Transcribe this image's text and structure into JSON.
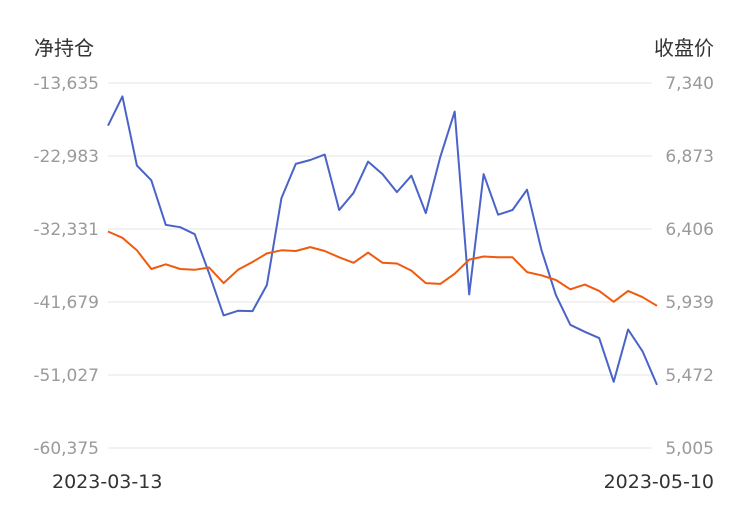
{
  "chart_data": {
    "type": "line",
    "left_axis_title": "净持仓",
    "right_axis_title": "收盘价",
    "left_ticks": [
      "-13,635",
      "-22,983",
      "-32,331",
      "-41,679",
      "-51,027",
      "-60,375"
    ],
    "right_ticks": [
      "7,340",
      "6,873",
      "6,406",
      "5,939",
      "5,472",
      "5,005"
    ],
    "left_range": [
      -60375,
      -13635
    ],
    "right_range": [
      5005,
      7340
    ],
    "x_start_label": "2023-03-13",
    "x_end_label": "2023-05-10",
    "grid": true,
    "series": [
      {
        "axis": "left",
        "color": "#4a63c8",
        "values": [
          -19100,
          -15350,
          -24200,
          -26100,
          -31800,
          -32100,
          -33000,
          -38000,
          -43400,
          -42800,
          -42850,
          -39500,
          -28400,
          -24000,
          -23500,
          -22800,
          -29900,
          -27700,
          -23700,
          -25300,
          -27600,
          -25500,
          -30300,
          -23100,
          -17300,
          -40700,
          -25300,
          -30500,
          -29900,
          -27300,
          -35000,
          -40800,
          -44600,
          -45500,
          -46300,
          -51900,
          -45200,
          -48000,
          -52300
        ]
      },
      {
        "axis": "right",
        "color": "#f05a0f",
        "values": [
          6390,
          6350,
          6270,
          6150,
          6180,
          6150,
          6145,
          6160,
          6060,
          6145,
          6195,
          6250,
          6270,
          6265,
          6290,
          6265,
          6225,
          6190,
          6255,
          6190,
          6185,
          6140,
          6060,
          6055,
          6120,
          6210,
          6230,
          6225,
          6225,
          6130,
          6110,
          6080,
          6020,
          6050,
          6010,
          5940,
          6010,
          5970,
          5915
        ]
      }
    ]
  }
}
